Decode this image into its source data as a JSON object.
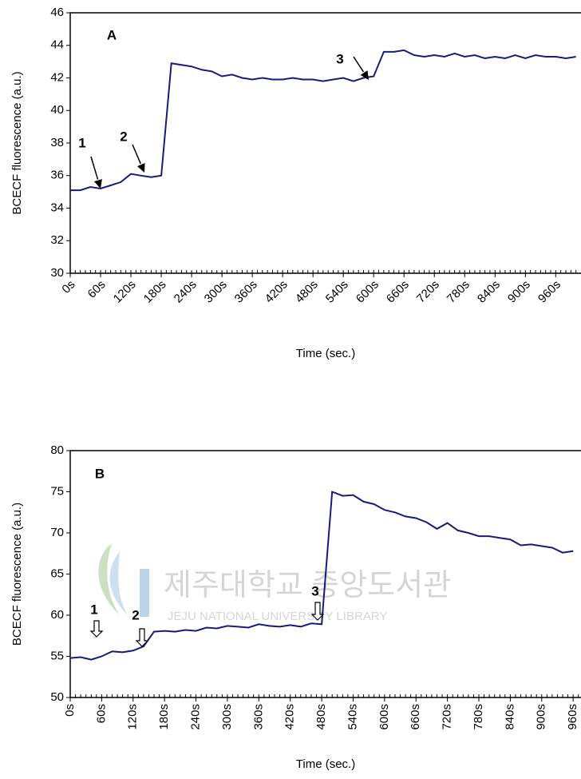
{
  "chart_data": [
    {
      "type": "line",
      "ylabel": "BCECF fluorescence (a.u.)",
      "xlabel": "Time (sec.)",
      "color": "#1a1a7a",
      "annotations": [
        "A",
        "1",
        "2",
        "3"
      ],
      "xlim": [
        0,
        1010
      ],
      "ylim": [
        30,
        46
      ],
      "yticks": [
        30,
        32,
        34,
        36,
        38,
        40,
        42,
        44,
        46
      ],
      "xticks": [
        {
          "value": 0,
          "label": "0s"
        },
        {
          "value": 60,
          "label": "60s"
        },
        {
          "value": 120,
          "label": "120s"
        },
        {
          "value": 180,
          "label": "180s"
        },
        {
          "value": 240,
          "label": "240s"
        },
        {
          "value": 300,
          "label": "300s"
        },
        {
          "value": 360,
          "label": "360s"
        },
        {
          "value": 420,
          "label": "420s"
        },
        {
          "value": 480,
          "label": "480s"
        },
        {
          "value": 540,
          "label": "540s"
        },
        {
          "value": 600,
          "label": "600s"
        },
        {
          "value": 660,
          "label": "660s"
        },
        {
          "value": 720,
          "label": "720s"
        },
        {
          "value": 780,
          "label": "780s"
        },
        {
          "value": 840,
          "label": "840s"
        },
        {
          "value": 900,
          "label": "900s"
        },
        {
          "value": 960,
          "label": "960s"
        }
      ],
      "x": [
        0,
        20,
        40,
        60,
        80,
        100,
        120,
        140,
        160,
        180,
        200,
        220,
        240,
        260,
        280,
        300,
        320,
        340,
        360,
        380,
        400,
        420,
        440,
        460,
        480,
        500,
        520,
        540,
        560,
        580,
        600,
        620,
        640,
        660,
        680,
        700,
        720,
        740,
        760,
        780,
        800,
        820,
        840,
        860,
        880,
        900,
        920,
        940,
        960,
        980,
        1000
      ],
      "values": [
        35.1,
        35.1,
        35.3,
        35.2,
        35.4,
        35.6,
        36.1,
        36.0,
        35.9,
        36.0,
        42.9,
        42.8,
        42.7,
        42.5,
        42.4,
        42.1,
        42.2,
        42.0,
        41.9,
        42.0,
        41.9,
        41.9,
        42.0,
        41.9,
        41.9,
        41.8,
        41.9,
        42.0,
        41.8,
        42.0,
        42.1,
        43.6,
        43.6,
        43.7,
        43.4,
        43.3,
        43.4,
        43.3,
        43.5,
        43.3,
        43.4,
        43.2,
        43.3,
        43.2,
        43.4,
        43.2,
        43.4,
        43.3,
        43.3,
        43.2,
        43.3
      ]
    },
    {
      "type": "line",
      "ylabel": "BCECF fluorescence (a.u.)",
      "xlabel": "Time (sec.)",
      "color": "#1a1a7a",
      "annotations": [
        "B",
        "1",
        "2",
        "3"
      ],
      "xlim": [
        0,
        975
      ],
      "ylim": [
        50,
        80
      ],
      "yticks": [
        50,
        55,
        60,
        65,
        70,
        75,
        80
      ],
      "xticks": [
        {
          "value": 0,
          "label": "0s"
        },
        {
          "value": 60,
          "label": "60s"
        },
        {
          "value": 120,
          "label": "120s"
        },
        {
          "value": 180,
          "label": "180s"
        },
        {
          "value": 240,
          "label": "240s"
        },
        {
          "value": 300,
          "label": "300s"
        },
        {
          "value": 360,
          "label": "360s"
        },
        {
          "value": 420,
          "label": "420s"
        },
        {
          "value": 480,
          "label": "480s"
        },
        {
          "value": 540,
          "label": "540s"
        },
        {
          "value": 600,
          "label": "600s"
        },
        {
          "value": 660,
          "label": "660s"
        },
        {
          "value": 720,
          "label": "720s"
        },
        {
          "value": 780,
          "label": "780s"
        },
        {
          "value": 840,
          "label": "840s"
        },
        {
          "value": 900,
          "label": "900s"
        },
        {
          "value": 960,
          "label": "960s"
        }
      ],
      "x": [
        0,
        20,
        40,
        60,
        80,
        100,
        120,
        140,
        160,
        180,
        200,
        220,
        240,
        260,
        280,
        300,
        320,
        340,
        360,
        380,
        400,
        420,
        440,
        460,
        480,
        500,
        520,
        540,
        560,
        580,
        600,
        620,
        640,
        660,
        680,
        700,
        720,
        740,
        760,
        780,
        800,
        820,
        840,
        860,
        880,
        900,
        920,
        940,
        960
      ],
      "values": [
        54.8,
        54.9,
        54.6,
        55.0,
        55.6,
        55.5,
        55.7,
        56.2,
        58.0,
        58.1,
        58.0,
        58.2,
        58.1,
        58.5,
        58.4,
        58.7,
        58.6,
        58.5,
        58.9,
        58.7,
        58.6,
        58.8,
        58.6,
        59.0,
        58.9,
        75.0,
        74.5,
        74.6,
        73.8,
        73.5,
        72.8,
        72.5,
        72.0,
        71.8,
        71.3,
        70.5,
        71.2,
        70.3,
        70.0,
        69.6,
        69.6,
        69.4,
        69.2,
        68.5,
        68.6,
        68.4,
        68.2,
        67.6,
        67.8
      ]
    }
  ],
  "watermark": {
    "title": "제주대학교 중앙도서관",
    "subtitle": "JEJU NATIONAL UNIVERSITY LIBRARY"
  }
}
